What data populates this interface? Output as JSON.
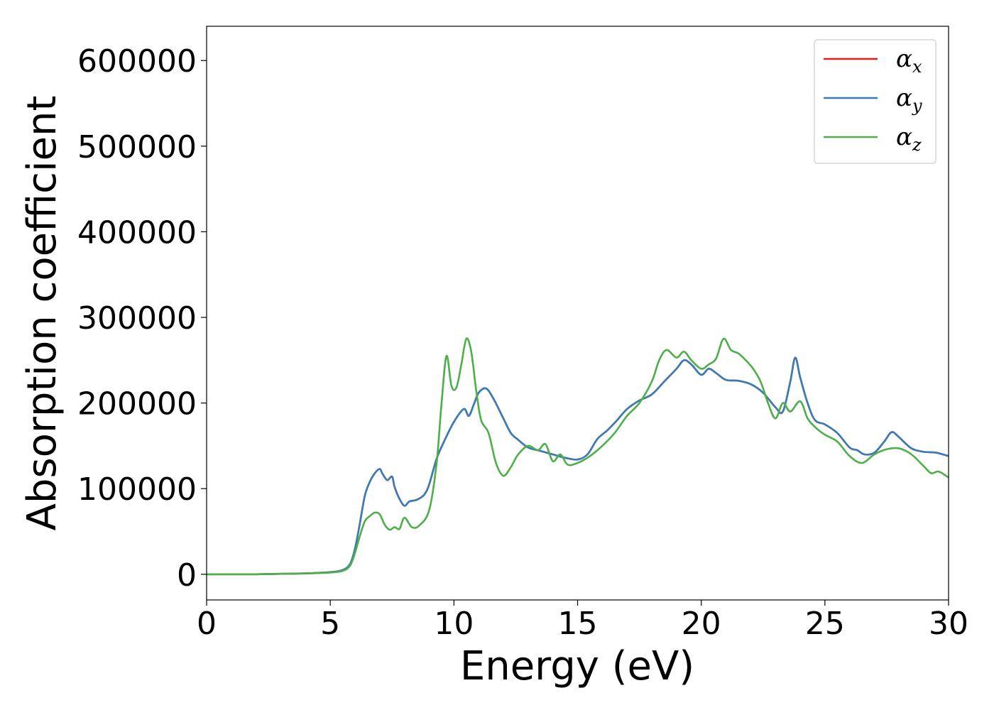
{
  "chart_data": {
    "type": "line",
    "title": "",
    "xlabel": "Energy (eV)",
    "ylabel": "Absorption coefficient",
    "xlim": [
      0,
      30
    ],
    "ylim": [
      -30000,
      640000
    ],
    "xticks": [
      0,
      5,
      10,
      15,
      20,
      25,
      30
    ],
    "yticks": [
      0,
      100000,
      200000,
      300000,
      400000,
      500000,
      600000
    ],
    "grid": false,
    "legend_position": "top-right",
    "series": [
      {
        "name": "α_x",
        "legend_base": "α",
        "legend_sub": "x",
        "color": "#e41a1c",
        "x": [
          0,
          1,
          2,
          3,
          4,
          5,
          5.5,
          5.8,
          6.0,
          6.2,
          6.4,
          6.6,
          6.8,
          7.0,
          7.1,
          7.3,
          7.5,
          7.6,
          7.8,
          8.0,
          8.2,
          8.5,
          8.8,
          9.0,
          9.3,
          9.6,
          10.0,
          10.4,
          10.6,
          10.8,
          11.0,
          11.3,
          11.6,
          12.0,
          12.3,
          12.6,
          13.0,
          13.5,
          14.0,
          14.5,
          15.0,
          15.4,
          15.8,
          16.2,
          16.6,
          17.0,
          17.5,
          18.0,
          18.5,
          19.0,
          19.3,
          19.6,
          20.0,
          20.3,
          20.6,
          21.0,
          21.5,
          22.0,
          22.5,
          23.0,
          23.3,
          23.6,
          23.8,
          24.0,
          24.3,
          24.6,
          25.0,
          25.5,
          26.0,
          26.3,
          26.6,
          27.0,
          27.4,
          27.7,
          28.0,
          28.5,
          29.0,
          29.5,
          30.0
        ],
        "y": [
          0,
          0,
          0,
          500,
          1000,
          2500,
          5000,
          12000,
          30000,
          60000,
          92000,
          108000,
          118000,
          123000,
          118000,
          110000,
          114000,
          102000,
          88000,
          80000,
          85000,
          87000,
          93000,
          105000,
          135000,
          155000,
          178000,
          193000,
          185000,
          198000,
          212000,
          217000,
          205000,
          182000,
          165000,
          157000,
          148000,
          144000,
          140000,
          136000,
          134000,
          140000,
          158000,
          168000,
          180000,
          193000,
          203000,
          210000,
          225000,
          240000,
          250000,
          245000,
          233000,
          240000,
          235000,
          227000,
          226000,
          222000,
          212000,
          195000,
          190000,
          225000,
          253000,
          230000,
          200000,
          180000,
          175000,
          165000,
          148000,
          145000,
          140000,
          142000,
          155000,
          166000,
          160000,
          147000,
          143000,
          142000,
          138000
        ]
      },
      {
        "name": "α_y",
        "legend_base": "α",
        "legend_sub": "y",
        "color": "#377eb8",
        "x": [
          0,
          1,
          2,
          3,
          4,
          5,
          5.5,
          5.8,
          6.0,
          6.2,
          6.4,
          6.6,
          6.8,
          7.0,
          7.1,
          7.3,
          7.5,
          7.6,
          7.8,
          8.0,
          8.2,
          8.5,
          8.8,
          9.0,
          9.3,
          9.6,
          10.0,
          10.4,
          10.6,
          10.8,
          11.0,
          11.3,
          11.6,
          12.0,
          12.3,
          12.6,
          13.0,
          13.5,
          14.0,
          14.5,
          15.0,
          15.4,
          15.8,
          16.2,
          16.6,
          17.0,
          17.5,
          18.0,
          18.5,
          19.0,
          19.3,
          19.6,
          20.0,
          20.3,
          20.6,
          21.0,
          21.5,
          22.0,
          22.5,
          23.0,
          23.3,
          23.6,
          23.8,
          24.0,
          24.3,
          24.6,
          25.0,
          25.5,
          26.0,
          26.3,
          26.6,
          27.0,
          27.4,
          27.7,
          28.0,
          28.5,
          29.0,
          29.5,
          30.0
        ],
        "y": [
          0,
          0,
          0,
          500,
          1000,
          2500,
          5000,
          12000,
          30000,
          60000,
          92000,
          108000,
          118000,
          123000,
          118000,
          110000,
          114000,
          102000,
          88000,
          80000,
          85000,
          87000,
          93000,
          105000,
          135000,
          155000,
          178000,
          193000,
          185000,
          198000,
          212000,
          217000,
          205000,
          182000,
          165000,
          157000,
          148000,
          144000,
          140000,
          136000,
          134000,
          140000,
          158000,
          168000,
          180000,
          193000,
          203000,
          210000,
          225000,
          240000,
          250000,
          245000,
          233000,
          240000,
          235000,
          227000,
          226000,
          222000,
          212000,
          195000,
          190000,
          225000,
          253000,
          230000,
          200000,
          180000,
          175000,
          165000,
          148000,
          145000,
          140000,
          142000,
          155000,
          166000,
          160000,
          147000,
          143000,
          142000,
          138000
        ]
      },
      {
        "name": "α_z",
        "legend_base": "α",
        "legend_sub": "z",
        "color": "#4daf4a",
        "x": [
          0,
          1,
          2,
          3,
          4,
          5,
          5.5,
          5.8,
          6.0,
          6.2,
          6.4,
          6.6,
          6.8,
          7.0,
          7.2,
          7.4,
          7.6,
          7.8,
          8.0,
          8.3,
          8.6,
          9.0,
          9.3,
          9.5,
          9.7,
          9.9,
          10.1,
          10.3,
          10.5,
          10.7,
          10.9,
          11.1,
          11.4,
          11.7,
          12.0,
          12.3,
          12.6,
          13.0,
          13.4,
          13.7,
          14.0,
          14.3,
          14.6,
          15.0,
          15.5,
          16.0,
          16.5,
          17.0,
          17.5,
          18.0,
          18.3,
          18.6,
          19.0,
          19.3,
          19.6,
          20.0,
          20.3,
          20.6,
          20.9,
          21.2,
          21.5,
          21.8,
          22.1,
          22.4,
          22.7,
          23.0,
          23.3,
          23.6,
          24.0,
          24.3,
          24.6,
          25.0,
          25.5,
          26.0,
          26.5,
          27.0,
          27.5,
          28.0,
          28.5,
          29.0,
          29.3,
          29.6,
          30.0
        ],
        "y": [
          0,
          0,
          0,
          500,
          1000,
          2000,
          4000,
          10000,
          25000,
          45000,
          62000,
          68000,
          72000,
          70000,
          58000,
          52000,
          55000,
          53000,
          66000,
          55000,
          57000,
          75000,
          130000,
          200000,
          255000,
          220000,
          218000,
          245000,
          275000,
          260000,
          215000,
          180000,
          165000,
          130000,
          115000,
          125000,
          140000,
          150000,
          145000,
          152000,
          132000,
          140000,
          128000,
          130000,
          138000,
          150000,
          165000,
          185000,
          200000,
          225000,
          250000,
          262000,
          253000,
          260000,
          250000,
          240000,
          245000,
          252000,
          275000,
          262000,
          258000,
          250000,
          240000,
          225000,
          200000,
          182000,
          200000,
          190000,
          202000,
          182000,
          172000,
          163000,
          155000,
          138000,
          130000,
          140000,
          146000,
          147000,
          140000,
          126000,
          118000,
          120000,
          113000
        ]
      }
    ]
  }
}
